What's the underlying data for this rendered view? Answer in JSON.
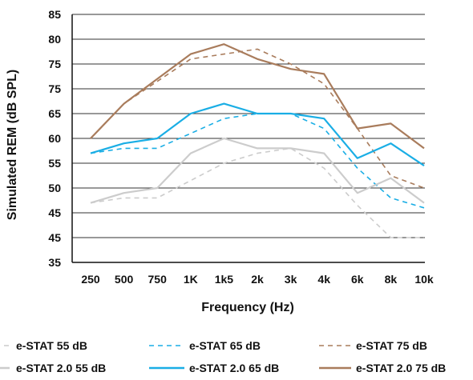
{
  "chart_data": {
    "type": "line",
    "xlabel": "Frequency (Hz)",
    "ylabel": "Simulated REM (dB SPL)",
    "categories": [
      "250",
      "500",
      "750",
      "1K",
      "1k5",
      "2k",
      "3k",
      "4k",
      "6k",
      "8k",
      "10k"
    ],
    "y_tick_labels": [
      "35",
      "45",
      "45",
      "50",
      "55",
      "60",
      "65",
      "75",
      "75",
      "80",
      "85"
    ],
    "y_axis_note": "Tick labels printed as shown; values mapped in linear data space 35–85 (5 dB per division).",
    "ylim": [
      35,
      85
    ],
    "grid": "horizontal",
    "legend_position": "bottom",
    "series": [
      {
        "name": "e-STAT 55 dB",
        "color": "#cccccc",
        "dash": true,
        "values": [
          47,
          48,
          48,
          51.5,
          55,
          57,
          58,
          54,
          46.5,
          40,
          40
        ]
      },
      {
        "name": "e-STAT 65 dB",
        "color": "#1aaee5",
        "dash": true,
        "values": [
          57,
          58,
          58,
          61,
          64,
          65,
          65,
          62,
          54,
          48,
          46
        ]
      },
      {
        "name": "e-STAT 75 dB",
        "color": "#a97c5c",
        "dash": true,
        "values": [
          60,
          67,
          71.5,
          76,
          77,
          78,
          75,
          71,
          62,
          52.5,
          50
        ]
      },
      {
        "name": "e-STAT 2.0 55 dB",
        "color": "#cccccc",
        "dash": false,
        "values": [
          47,
          49,
          50,
          57,
          60,
          58,
          58,
          57,
          49,
          52,
          47
        ]
      },
      {
        "name": "e-STAT 2.0 65 dB",
        "color": "#1aaee5",
        "dash": false,
        "values": [
          57,
          59,
          60,
          65,
          67,
          65,
          65,
          64,
          56,
          59,
          54.5
        ]
      },
      {
        "name": "e-STAT 2.0 75 dB",
        "color": "#a97c5c",
        "dash": false,
        "values": [
          60,
          67,
          72,
          77,
          79,
          76,
          74,
          73,
          62,
          63,
          58
        ]
      }
    ]
  }
}
